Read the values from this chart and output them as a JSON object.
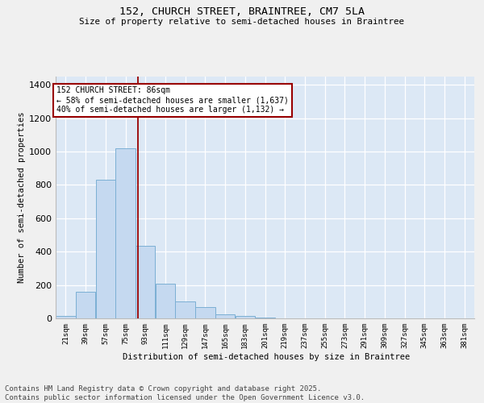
{
  "title_line1": "152, CHURCH STREET, BRAINTREE, CM7 5LA",
  "title_line2": "Size of property relative to semi-detached houses in Braintree",
  "xlabel": "Distribution of semi-detached houses by size in Braintree",
  "ylabel": "Number of semi-detached properties",
  "bar_color": "#c5d9f0",
  "bar_edge_color": "#7bafd4",
  "bg_color": "#dce8f5",
  "grid_color": "#ffffff",
  "annotation_text": "152 CHURCH STREET: 86sqm\n← 58% of semi-detached houses are smaller (1,637)\n40% of semi-detached houses are larger (1,132) →",
  "vline_color": "#990000",
  "categories": [
    "21sqm",
    "39sqm",
    "57sqm",
    "75sqm",
    "93sqm",
    "111sqm",
    "129sqm",
    "147sqm",
    "165sqm",
    "183sqm",
    "201sqm",
    "219sqm",
    "237sqm",
    "255sqm",
    "273sqm",
    "291sqm",
    "309sqm",
    "327sqm",
    "345sqm",
    "363sqm",
    "381sqm"
  ],
  "bin_starts": [
    12,
    30,
    48,
    66,
    84,
    102,
    120,
    138,
    156,
    174,
    192,
    210,
    228,
    246,
    264,
    282,
    300,
    318,
    336,
    354,
    372
  ],
  "bin_width": 18,
  "bar_values": [
    15,
    160,
    830,
    1020,
    435,
    210,
    100,
    70,
    25,
    15,
    5,
    0,
    0,
    0,
    0,
    0,
    0,
    0,
    0,
    0,
    0
  ],
  "vline_x": 86,
  "ylim": [
    0,
    1450
  ],
  "yticks": [
    0,
    200,
    400,
    600,
    800,
    1000,
    1200,
    1400
  ],
  "footnote": "Contains HM Land Registry data © Crown copyright and database right 2025.\nContains public sector information licensed under the Open Government Licence v3.0."
}
